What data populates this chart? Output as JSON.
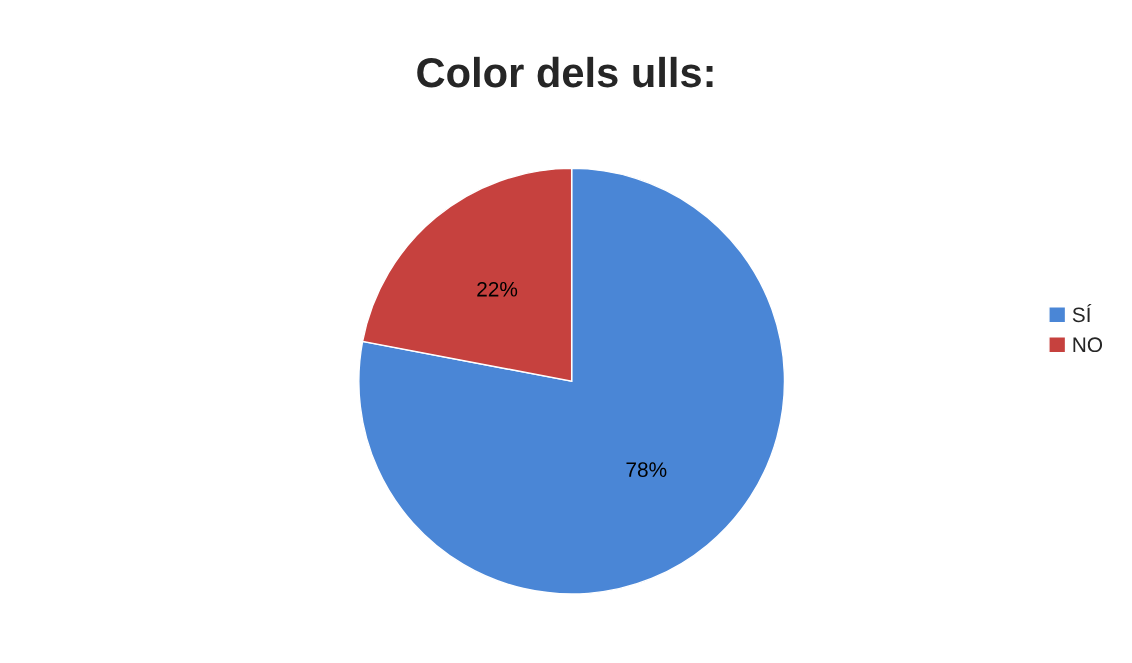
{
  "chart_data": {
    "type": "pie",
    "title": "Color dels ulls:",
    "categories": [
      "SÍ",
      "NO"
    ],
    "values": [
      78,
      22
    ],
    "colors": [
      "#4a86d6",
      "#c6413e"
    ],
    "value_labels": [
      "78%",
      "22%"
    ],
    "legend": "right"
  }
}
